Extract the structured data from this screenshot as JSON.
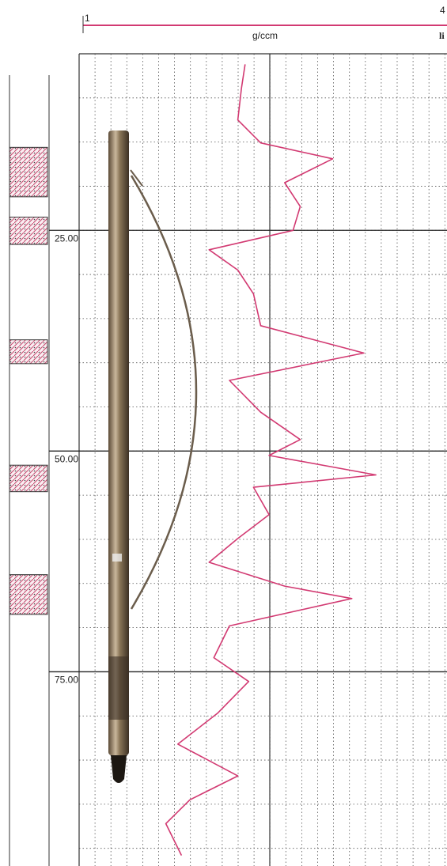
{
  "chart_data": {
    "type": "line",
    "orientation": "vertical",
    "y_label": "g/ccm",
    "annotations": [
      "li"
    ],
    "x": [
      6.2,
      8.9,
      12.5,
      15.1,
      16.9,
      19.6,
      22.3,
      25.0,
      27.2,
      29.5,
      32.2,
      35.8,
      38.9,
      42.0,
      45.6,
      48.7,
      50.5,
      52.7,
      54.1,
      57.2,
      59.9,
      62.6,
      65.3,
      66.7,
      69.8,
      73.4,
      76.1,
      79.7,
      83.2,
      86.8,
      89.5,
      92.2,
      95.8
    ],
    "series": [
      {
        "color": "#d23a72",
        "values": [
          2.35,
          2.32,
          2.29,
          2.48,
          3.08,
          2.68,
          2.81,
          2.75,
          2.05,
          2.29,
          2.42,
          2.48,
          3.34,
          2.22,
          2.48,
          2.81,
          2.55,
          3.44,
          2.42,
          2.55,
          2.29,
          2.05,
          2.68,
          3.24,
          2.22,
          2.09,
          2.38,
          2.12,
          1.79,
          2.29,
          1.89,
          1.69,
          1.82
        ]
      }
    ],
    "xlim": [
      5,
      97
    ],
    "xticks": [
      {
        "value": 25,
        "label": "25.00"
      },
      {
        "value": 50,
        "label": "50.00"
      },
      {
        "value": 75,
        "label": "75.00"
      }
    ],
    "ylim": [
      1,
      4
    ],
    "yticks": [
      1,
      4
    ],
    "intervals": [
      [
        15.6,
        21.2
      ],
      [
        23.5,
        26.6
      ],
      [
        37.4,
        40.1
      ],
      [
        51.6,
        54.6
      ],
      [
        64.0,
        68.5
      ]
    ],
    "grid": true
  }
}
